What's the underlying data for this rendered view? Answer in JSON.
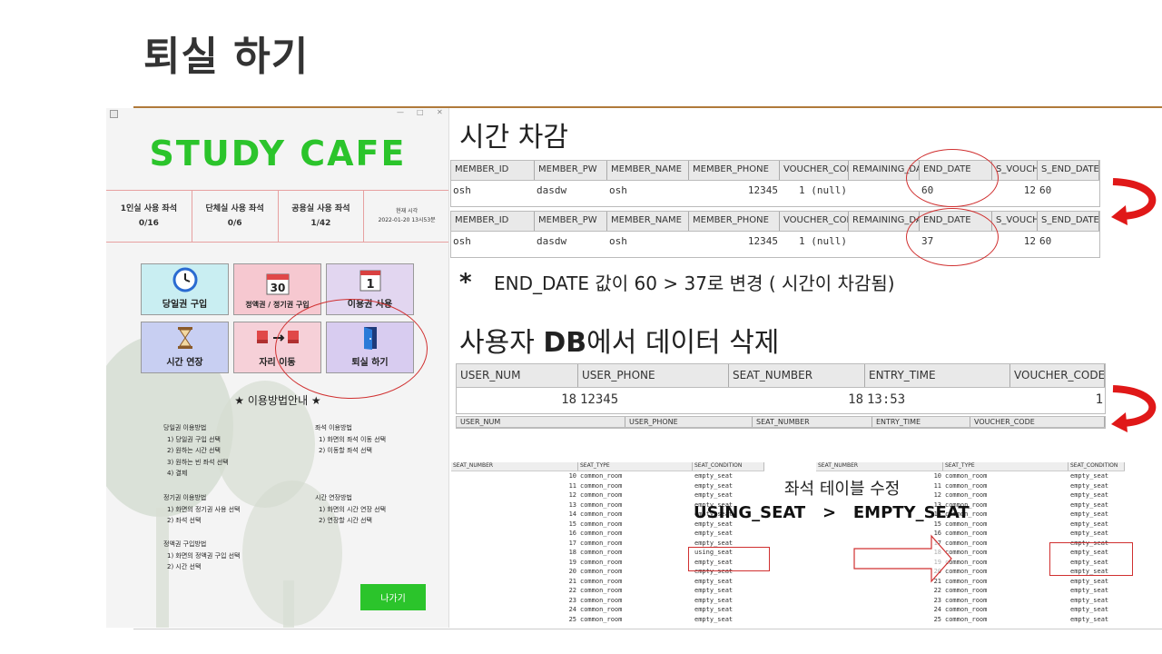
{
  "slide": {
    "title": "퇴실 하기",
    "section1": "시간 차감",
    "note": "END_DATE 값이 60 > 37로 변경 ( 시간이 차감됨)",
    "note_star": "*",
    "section2_prefix": "사용자 ",
    "section2_bold": "DB",
    "section2_suffix": "에서 데이터 삭제",
    "seat_note1": "좌석 테이블 수정",
    "seat_note2": "USING_SEAT   >   EMPTY_SEAT"
  },
  "app": {
    "window_controls": [
      "—",
      "□",
      "✕"
    ],
    "brand": "STUDY CAFE",
    "stats": [
      {
        "label": "1인실 사용 좌석",
        "value": "0/16"
      },
      {
        "label": "단체실 사용 좌석",
        "value": "0/6"
      },
      {
        "label": "공용실 사용 좌석",
        "value": "1/42"
      },
      {
        "label": "현재 시각",
        "value": "2022-01-20 13시53분"
      }
    ],
    "tiles": [
      {
        "label": "당일권 구입",
        "icon": "clock-icon",
        "bg": "#c9eef2"
      },
      {
        "label": "정액권 / 정기권 구입",
        "icon": "calendar-30-icon",
        "bg": "#f6c8d0"
      },
      {
        "label": "이용권 사용",
        "icon": "calendar-1-icon",
        "bg": "#e2d6f0"
      },
      {
        "label": "시간 연장",
        "icon": "hourglass-icon",
        "bg": "#c8cff2"
      },
      {
        "label": "자리 이동",
        "icon": "seat-move-icon",
        "bg": "#f6d0d8"
      },
      {
        "label": "퇴실 하기",
        "icon": "door-icon",
        "bg": "#d8ccf0"
      }
    ],
    "guide_title": "★ 이용방법안내 ★",
    "guide_blocks": [
      {
        "title": "당일권 이용방법",
        "lines": [
          "1) 당일권 구입 선택",
          "2) 원하는 시간 선택",
          "3) 원하는 빈 좌석 선택",
          "4) 결제"
        ]
      },
      {
        "title": "좌석 이용방법",
        "lines": [
          "1) 화면의 좌석 이동 선택",
          "2) 이동할 좌석 선택"
        ]
      },
      {
        "title": "정기권 이용방법",
        "lines": [
          "1) 화면의 정기권 사용 선택",
          "2) 좌석 선택"
        ]
      },
      {
        "title": "시간 연장방법",
        "lines": [
          "1) 화면의 시간 연장 선택",
          "2) 연장할 시간 선택"
        ]
      },
      {
        "title": "정액권 구입방법",
        "lines": [
          "1) 화면의 정액권 구입 선택",
          "2) 시간 선택"
        ]
      }
    ],
    "exit_label": "나가기"
  },
  "member_table": {
    "headers": [
      "MEMBER_ID",
      "MEMBER_PW",
      "MEMBER_NAME",
      "MEMBER_PHONE",
      "VOUCHER_CODE",
      "REMAINING_DAYS",
      "END_DATE",
      "S_VOUCHER_CODE",
      "S_END_DATE"
    ],
    "row_before": [
      "osh",
      "dasdw",
      "osh",
      "12345",
      "1 (null)",
      "",
      "60",
      "12",
      "60"
    ],
    "row_after": [
      "osh",
      "dasdw",
      "osh",
      "12345",
      "1 (null)",
      "",
      "37",
      "12",
      "60"
    ]
  },
  "user_table": {
    "headers": [
      "USER_NUM",
      "USER_PHONE",
      "SEAT_NUMBER",
      "ENTRY_TIME",
      "VOUCHER_CODE"
    ],
    "row": [
      "18",
      "12345",
      "18",
      "13:53",
      "1"
    ],
    "headers_after": [
      "USER_NUM",
      "USER_PHONE",
      "SEAT_NUMBER",
      "ENTRY_TIME",
      "VOUCHER_CODE"
    ]
  },
  "seat_table": {
    "headers": [
      "SEAT_NUMBER",
      "SEAT_TYPE",
      "SEAT_CONDITION"
    ],
    "rows_before": [
      [
        "10",
        "common_room",
        "empty_seat"
      ],
      [
        "11",
        "common_room",
        "empty_seat"
      ],
      [
        "12",
        "common_room",
        "empty_seat"
      ],
      [
        "13",
        "common_room",
        "empty_seat"
      ],
      [
        "14",
        "common_room",
        "empty_seat"
      ],
      [
        "15",
        "common_room",
        "empty_seat"
      ],
      [
        "16",
        "common_room",
        "empty_seat"
      ],
      [
        "17",
        "common_room",
        "empty_seat"
      ],
      [
        "18",
        "common_room",
        "using_seat"
      ],
      [
        "19",
        "common_room",
        "empty_seat"
      ],
      [
        "20",
        "common_room",
        "empty_seat"
      ],
      [
        "21",
        "common_room",
        "empty_seat"
      ],
      [
        "22",
        "common_room",
        "empty_seat"
      ],
      [
        "23",
        "common_room",
        "empty_seat"
      ],
      [
        "24",
        "common_room",
        "empty_seat"
      ],
      [
        "25",
        "common_room",
        "empty_seat"
      ]
    ],
    "rows_after": [
      [
        "10",
        "common_room",
        "empty_seat"
      ],
      [
        "11",
        "common_room",
        "empty_seat"
      ],
      [
        "12",
        "common_room",
        "empty_seat"
      ],
      [
        "13",
        "common_room",
        "empty_seat"
      ],
      [
        "14",
        "common_room",
        "empty_seat"
      ],
      [
        "15",
        "common_room",
        "empty_seat"
      ],
      [
        "16",
        "common_room",
        "empty_seat"
      ],
      [
        "17",
        "common_room",
        "empty_seat"
      ],
      [
        "18",
        "common_room",
        "empty_seat"
      ],
      [
        "19",
        "common_room",
        "empty_seat"
      ],
      [
        "20",
        "common_room",
        "empty_seat"
      ],
      [
        "21",
        "common_room",
        "empty_seat"
      ],
      [
        "22",
        "common_room",
        "empty_seat"
      ],
      [
        "23",
        "common_room",
        "empty_seat"
      ],
      [
        "24",
        "common_room",
        "empty_seat"
      ],
      [
        "25",
        "common_room",
        "empty_seat"
      ]
    ]
  },
  "colors": {
    "accent": "#2bc42b",
    "highlight": "#d03030",
    "rule": "#b07a3a"
  }
}
